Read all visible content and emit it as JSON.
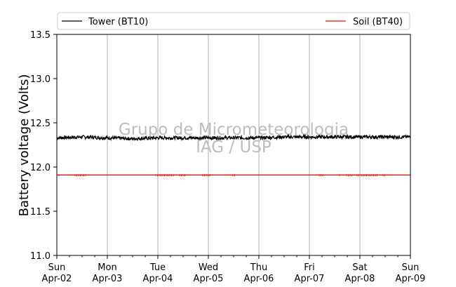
{
  "chart_data": {
    "type": "line",
    "title": "",
    "xlabel": "",
    "ylabel": "Battery voltage (Volts)",
    "xlim": [
      "2017-04-02",
      "2017-04-09"
    ],
    "ylim": [
      11.0,
      13.5
    ],
    "yticks": [
      11.0,
      11.5,
      12.0,
      12.5,
      13.0,
      13.5
    ],
    "ytick_labels": [
      "11.0",
      "11.5",
      "12.0",
      "12.5",
      "13.0",
      "13.5"
    ],
    "xticks": [
      {
        "day": "Sun",
        "date": "Apr-02"
      },
      {
        "day": "Mon",
        "date": "Apr-03"
      },
      {
        "day": "Tue",
        "date": "Apr-04"
      },
      {
        "day": "Wed",
        "date": "Apr-05"
      },
      {
        "day": "Thu",
        "date": "Apr-06"
      },
      {
        "day": "Fri",
        "date": "Apr-07"
      },
      {
        "day": "Sat",
        "date": "Apr-08"
      },
      {
        "day": "Sun",
        "date": "Apr-09"
      }
    ],
    "grid": "vertical",
    "legend_placement": "top",
    "watermark": [
      "Grupo de Micrometeorologia",
      "IAG / USP"
    ],
    "series": [
      {
        "name": "Tower (BT10)",
        "color": "#000000",
        "x": [
          "2017-04-02",
          "2017-04-02T12:00",
          "2017-04-03",
          "2017-04-03T12:00",
          "2017-04-04",
          "2017-04-04T12:00",
          "2017-04-05",
          "2017-04-05T12:00",
          "2017-04-06",
          "2017-04-06T12:00",
          "2017-04-07",
          "2017-04-07T12:00",
          "2017-04-08",
          "2017-04-08T12:00",
          "2017-04-09"
        ],
        "y": [
          12.33,
          12.34,
          12.33,
          12.32,
          12.33,
          12.33,
          12.33,
          12.33,
          12.33,
          12.34,
          12.34,
          12.34,
          12.34,
          12.34,
          12.34
        ]
      },
      {
        "name": "Soil (BT40)",
        "color": "#ff0000",
        "x": [
          "2017-04-02",
          "2017-04-09"
        ],
        "y": [
          11.91,
          11.91
        ]
      }
    ]
  }
}
